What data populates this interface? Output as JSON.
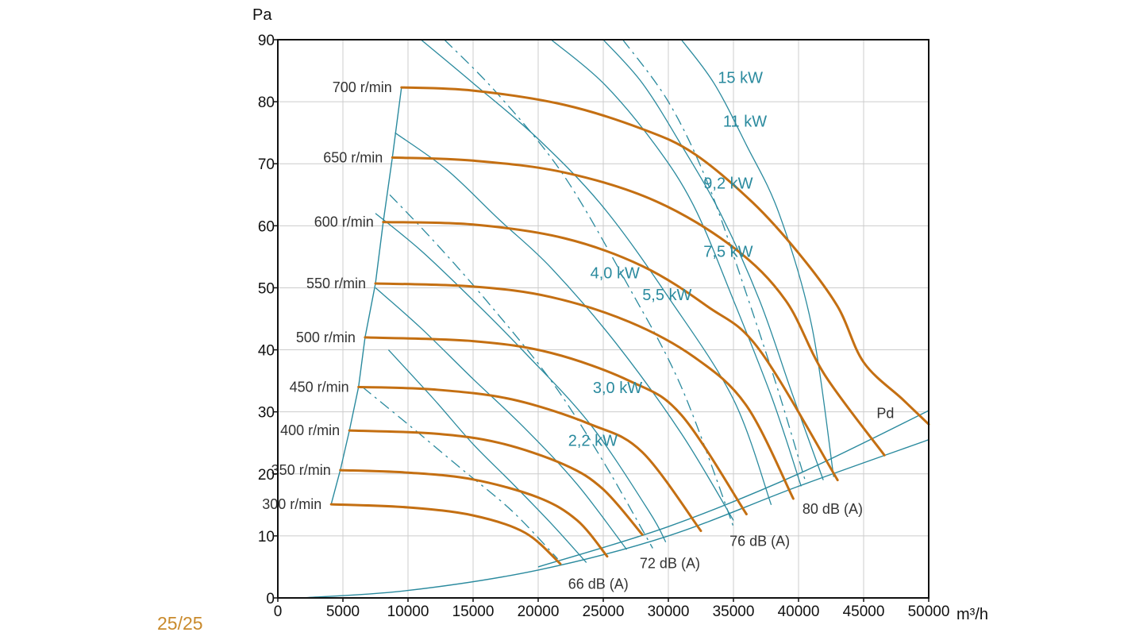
{
  "page_number": "25/25",
  "colors": {
    "speed": "#c46f12",
    "teal": "#2a8a9e",
    "grid": "#cccccc",
    "axis": "#111111",
    "page_number": "#c98a2c"
  },
  "chart_data": {
    "type": "line",
    "x_unit_label": "m³/h",
    "y_unit_label": "Pa",
    "xlim": [
      0,
      50000
    ],
    "ylim": [
      0,
      90
    ],
    "x_ticks": [
      "0",
      "5000",
      "10000",
      "15000",
      "20000",
      "25000",
      "30000",
      "35000",
      "40000",
      "45000",
      "50000"
    ],
    "y_ticks": [
      "0",
      "10",
      "20",
      "30",
      "40",
      "50",
      "60",
      "70",
      "80",
      "90"
    ],
    "grid": true,
    "speed_curves": [
      {
        "name": "300 r/min",
        "points": [
          [
            4100,
            15.1
          ],
          [
            10000,
            14.6
          ],
          [
            15000,
            13.3
          ],
          [
            19000,
            10.5
          ],
          [
            21700,
            5.5
          ]
        ]
      },
      {
        "name": "350 r/min",
        "points": [
          [
            4800,
            20.6
          ],
          [
            10000,
            20.2
          ],
          [
            15000,
            19.1
          ],
          [
            20000,
            16.2
          ],
          [
            23000,
            12.5
          ],
          [
            25300,
            6.7
          ]
        ]
      },
      {
        "name": "400 r/min",
        "points": [
          [
            5500,
            27.0
          ],
          [
            12000,
            26.5
          ],
          [
            17000,
            25.0
          ],
          [
            22000,
            21.5
          ],
          [
            25000,
            17.5
          ],
          [
            28000,
            10.2
          ]
        ]
      },
      {
        "name": "450 r/min",
        "points": [
          [
            6200,
            34.0
          ],
          [
            12000,
            33.6
          ],
          [
            18000,
            32.0
          ],
          [
            24000,
            28.0
          ],
          [
            28000,
            23.5
          ],
          [
            32500,
            10.8
          ]
        ]
      },
      {
        "name": "500 r/min",
        "points": [
          [
            6700,
            42.0
          ],
          [
            15000,
            41.4
          ],
          [
            21000,
            39.5
          ],
          [
            27000,
            35.0
          ],
          [
            31000,
            29.5
          ],
          [
            36000,
            13.5
          ]
        ]
      },
      {
        "name": "550 r/min",
        "points": [
          [
            7500,
            50.7
          ],
          [
            15000,
            50.2
          ],
          [
            21000,
            48.5
          ],
          [
            27000,
            44.5
          ],
          [
            32000,
            38.8
          ],
          [
            36000,
            31.0
          ],
          [
            39600,
            16.0
          ]
        ]
      },
      {
        "name": "600 r/min",
        "points": [
          [
            8100,
            60.6
          ],
          [
            15000,
            60.2
          ],
          [
            22000,
            58.0
          ],
          [
            28000,
            53.5
          ],
          [
            33000,
            47.0
          ],
          [
            37000,
            40.0
          ],
          [
            43000,
            19.0
          ]
        ]
      },
      {
        "name": "650 r/min",
        "points": [
          [
            8800,
            71.0
          ],
          [
            15000,
            70.5
          ],
          [
            22000,
            68.6
          ],
          [
            29000,
            64.0
          ],
          [
            35000,
            56.5
          ],
          [
            39000,
            48.0
          ],
          [
            42000,
            36.0
          ],
          [
            46600,
            23.0
          ]
        ]
      },
      {
        "name": "700 r/min",
        "points": [
          [
            9500,
            82.3
          ],
          [
            15000,
            81.8
          ],
          [
            22000,
            79.5
          ],
          [
            28000,
            75.6
          ],
          [
            32000,
            71.6
          ],
          [
            36500,
            63.7
          ],
          [
            40000,
            55.6
          ],
          [
            43000,
            47.0
          ],
          [
            45000,
            38.0
          ],
          [
            48000,
            32.0
          ],
          [
            50000,
            28.0
          ]
        ]
      }
    ],
    "power_curves": [
      {
        "name": "2,2 kW",
        "label_at": [
          22300,
          24.5
        ],
        "points": [
          [
            8500,
            40.0
          ],
          [
            12000,
            32.0
          ],
          [
            15000,
            24.8
          ],
          [
            18000,
            18.5
          ],
          [
            21000,
            12.0
          ],
          [
            23700,
            5.7
          ]
        ]
      },
      {
        "name": "3,0 kW",
        "label_at": [
          24200,
          33.0
        ],
        "points": [
          [
            7500,
            50.0
          ],
          [
            11000,
            43.5
          ],
          [
            15000,
            35.3
          ],
          [
            19000,
            27.3
          ],
          [
            23000,
            18.3
          ],
          [
            26800,
            7.8
          ]
        ]
      },
      {
        "name": "4,0 kW",
        "label_at": [
          24000,
          51.5
        ],
        "points": [
          [
            7500,
            62.0
          ],
          [
            11000,
            56.0
          ],
          [
            15000,
            48.0
          ],
          [
            19000,
            39.5
          ],
          [
            24000,
            28.0
          ],
          [
            28500,
            14.0
          ],
          [
            29800,
            9.0
          ]
        ]
      },
      {
        "name": "5,5 kW",
        "label_at": [
          28000,
          48.0
        ],
        "points": [
          [
            9000,
            75.0
          ],
          [
            13000,
            69.0
          ],
          [
            17000,
            61.0
          ],
          [
            21000,
            53.2
          ],
          [
            26000,
            41.0
          ],
          [
            31000,
            26.5
          ],
          [
            35000,
            12.5
          ]
        ]
      },
      {
        "name": "7,5 kW",
        "label_at": [
          32700,
          55.0
        ],
        "points": [
          [
            11000,
            90.0
          ],
          [
            15000,
            83.0
          ],
          [
            20000,
            74.0
          ],
          [
            25000,
            63.0
          ],
          [
            30000,
            48.5
          ],
          [
            35000,
            32.0
          ],
          [
            37900,
            15.0
          ]
        ]
      },
      {
        "name": "9,2 kW",
        "label_at": [
          32700,
          66.0
        ],
        "points": [
          [
            21000,
            90.0
          ],
          [
            25000,
            83.0
          ],
          [
            29000,
            73.0
          ],
          [
            32000,
            63.0
          ],
          [
            35000,
            48.0
          ],
          [
            38000,
            32.0
          ],
          [
            40200,
            18.0
          ]
        ]
      },
      {
        "name": "11 kW",
        "label_at": [
          34200,
          76.0
        ],
        "points": [
          [
            25000,
            90.0
          ],
          [
            28000,
            83.0
          ],
          [
            31000,
            73.0
          ],
          [
            34000,
            62.0
          ],
          [
            37000,
            48.0
          ],
          [
            39500,
            33.0
          ],
          [
            41900,
            19.0
          ]
        ]
      },
      {
        "name": "15  kW",
        "label_at": [
          33800,
          83.0
        ],
        "points": [
          [
            31000,
            90.0
          ],
          [
            33500,
            83.0
          ],
          [
            36000,
            73.0
          ],
          [
            38500,
            62.0
          ],
          [
            41000,
            44.0
          ],
          [
            42700,
            19.5
          ]
        ]
      }
    ],
    "db_curves": [
      {
        "name": "66 dB (A)",
        "label_at": [
          22300,
          1.5
        ],
        "points": [
          [
            6500,
            34.0
          ],
          [
            10000,
            28.0
          ],
          [
            14000,
            21.0
          ],
          [
            18000,
            14.0
          ],
          [
            21500,
            6.3
          ]
        ]
      },
      {
        "name": "72 dB (A)",
        "label_at": [
          27800,
          4.8
        ],
        "points": [
          [
            8600,
            65.0
          ],
          [
            12000,
            57.5
          ],
          [
            16000,
            48.0
          ],
          [
            21000,
            35.0
          ],
          [
            25000,
            22.0
          ],
          [
            28800,
            8.0
          ]
        ]
      },
      {
        "name": "76 dB (A)",
        "label_at": [
          34700,
          8.4
        ],
        "points": [
          [
            12800,
            90.0
          ],
          [
            17000,
            81.0
          ],
          [
            22000,
            68.0
          ],
          [
            27000,
            50.0
          ],
          [
            31000,
            34.0
          ],
          [
            35000,
            11.5
          ]
        ]
      },
      {
        "name": "80 dB (A)",
        "label_at": [
          40300,
          13.6
        ],
        "points": [
          [
            26500,
            90.0
          ],
          [
            30000,
            80.0
          ],
          [
            33000,
            67.0
          ],
          [
            36000,
            49.0
          ],
          [
            38500,
            33.0
          ],
          [
            40500,
            19.0
          ]
        ]
      }
    ],
    "pd_curves": {
      "name": "Pd",
      "label_at": [
        46000,
        29.0
      ],
      "lines": [
        {
          "points": [
            [
              1800,
              0.0
            ],
            [
              10000,
              1.2
            ],
            [
              20000,
              4.5
            ],
            [
              30000,
              10.0
            ],
            [
              40000,
              18.0
            ],
            [
              50000,
              25.5
            ]
          ]
        },
        {
          "points": [
            [
              20000,
              5.0
            ],
            [
              30000,
              11.5
            ],
            [
              40000,
              20.0
            ],
            [
              50000,
              30.2
            ]
          ]
        }
      ]
    }
  }
}
